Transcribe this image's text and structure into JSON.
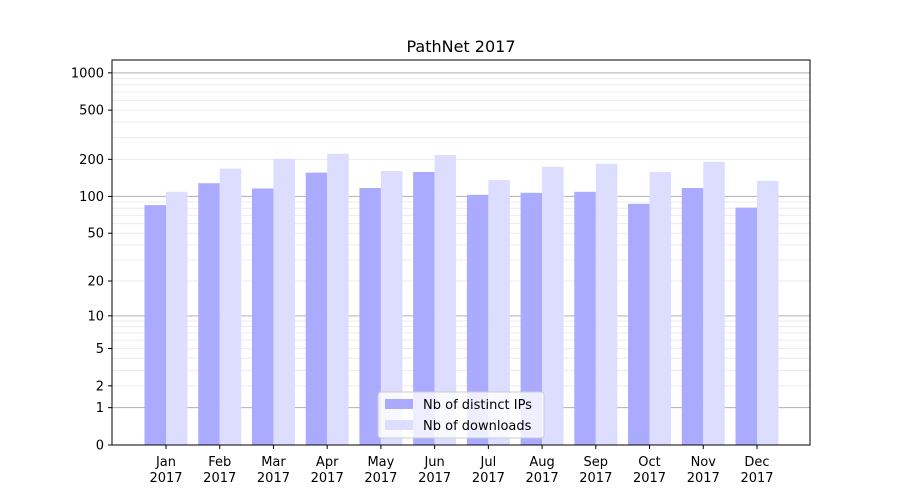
{
  "chart_data": {
    "type": "bar",
    "title": "PathNet 2017",
    "xlabel": "",
    "ylabel": "",
    "yscale": "log(1+y)",
    "ylim": [
      0,
      1270
    ],
    "yticks": [
      0,
      1,
      2,
      5,
      10,
      20,
      50,
      100,
      200,
      500,
      1000
    ],
    "grid": true,
    "legend_position": "bottom-center",
    "categories": [
      [
        "Jan",
        "2017"
      ],
      [
        "Feb",
        "2017"
      ],
      [
        "Mar",
        "2017"
      ],
      [
        "Apr",
        "2017"
      ],
      [
        "May",
        "2017"
      ],
      [
        "Jun",
        "2017"
      ],
      [
        "Jul",
        "2017"
      ],
      [
        "Aug",
        "2017"
      ],
      [
        "Sep",
        "2017"
      ],
      [
        "Oct",
        "2017"
      ],
      [
        "Nov",
        "2017"
      ],
      [
        "Dec",
        "2017"
      ]
    ],
    "series": [
      {
        "name": "Nb of distinct IPs",
        "color": "#aaaaff",
        "values": [
          85,
          128,
          116,
          156,
          117,
          158,
          103,
          107,
          109,
          87,
          117,
          81
        ]
      },
      {
        "name": "Nb of downloads",
        "color": "#ddddff",
        "values": [
          109,
          168,
          202,
          222,
          161,
          217,
          136,
          174,
          184,
          158,
          191,
          134
        ]
      }
    ]
  }
}
